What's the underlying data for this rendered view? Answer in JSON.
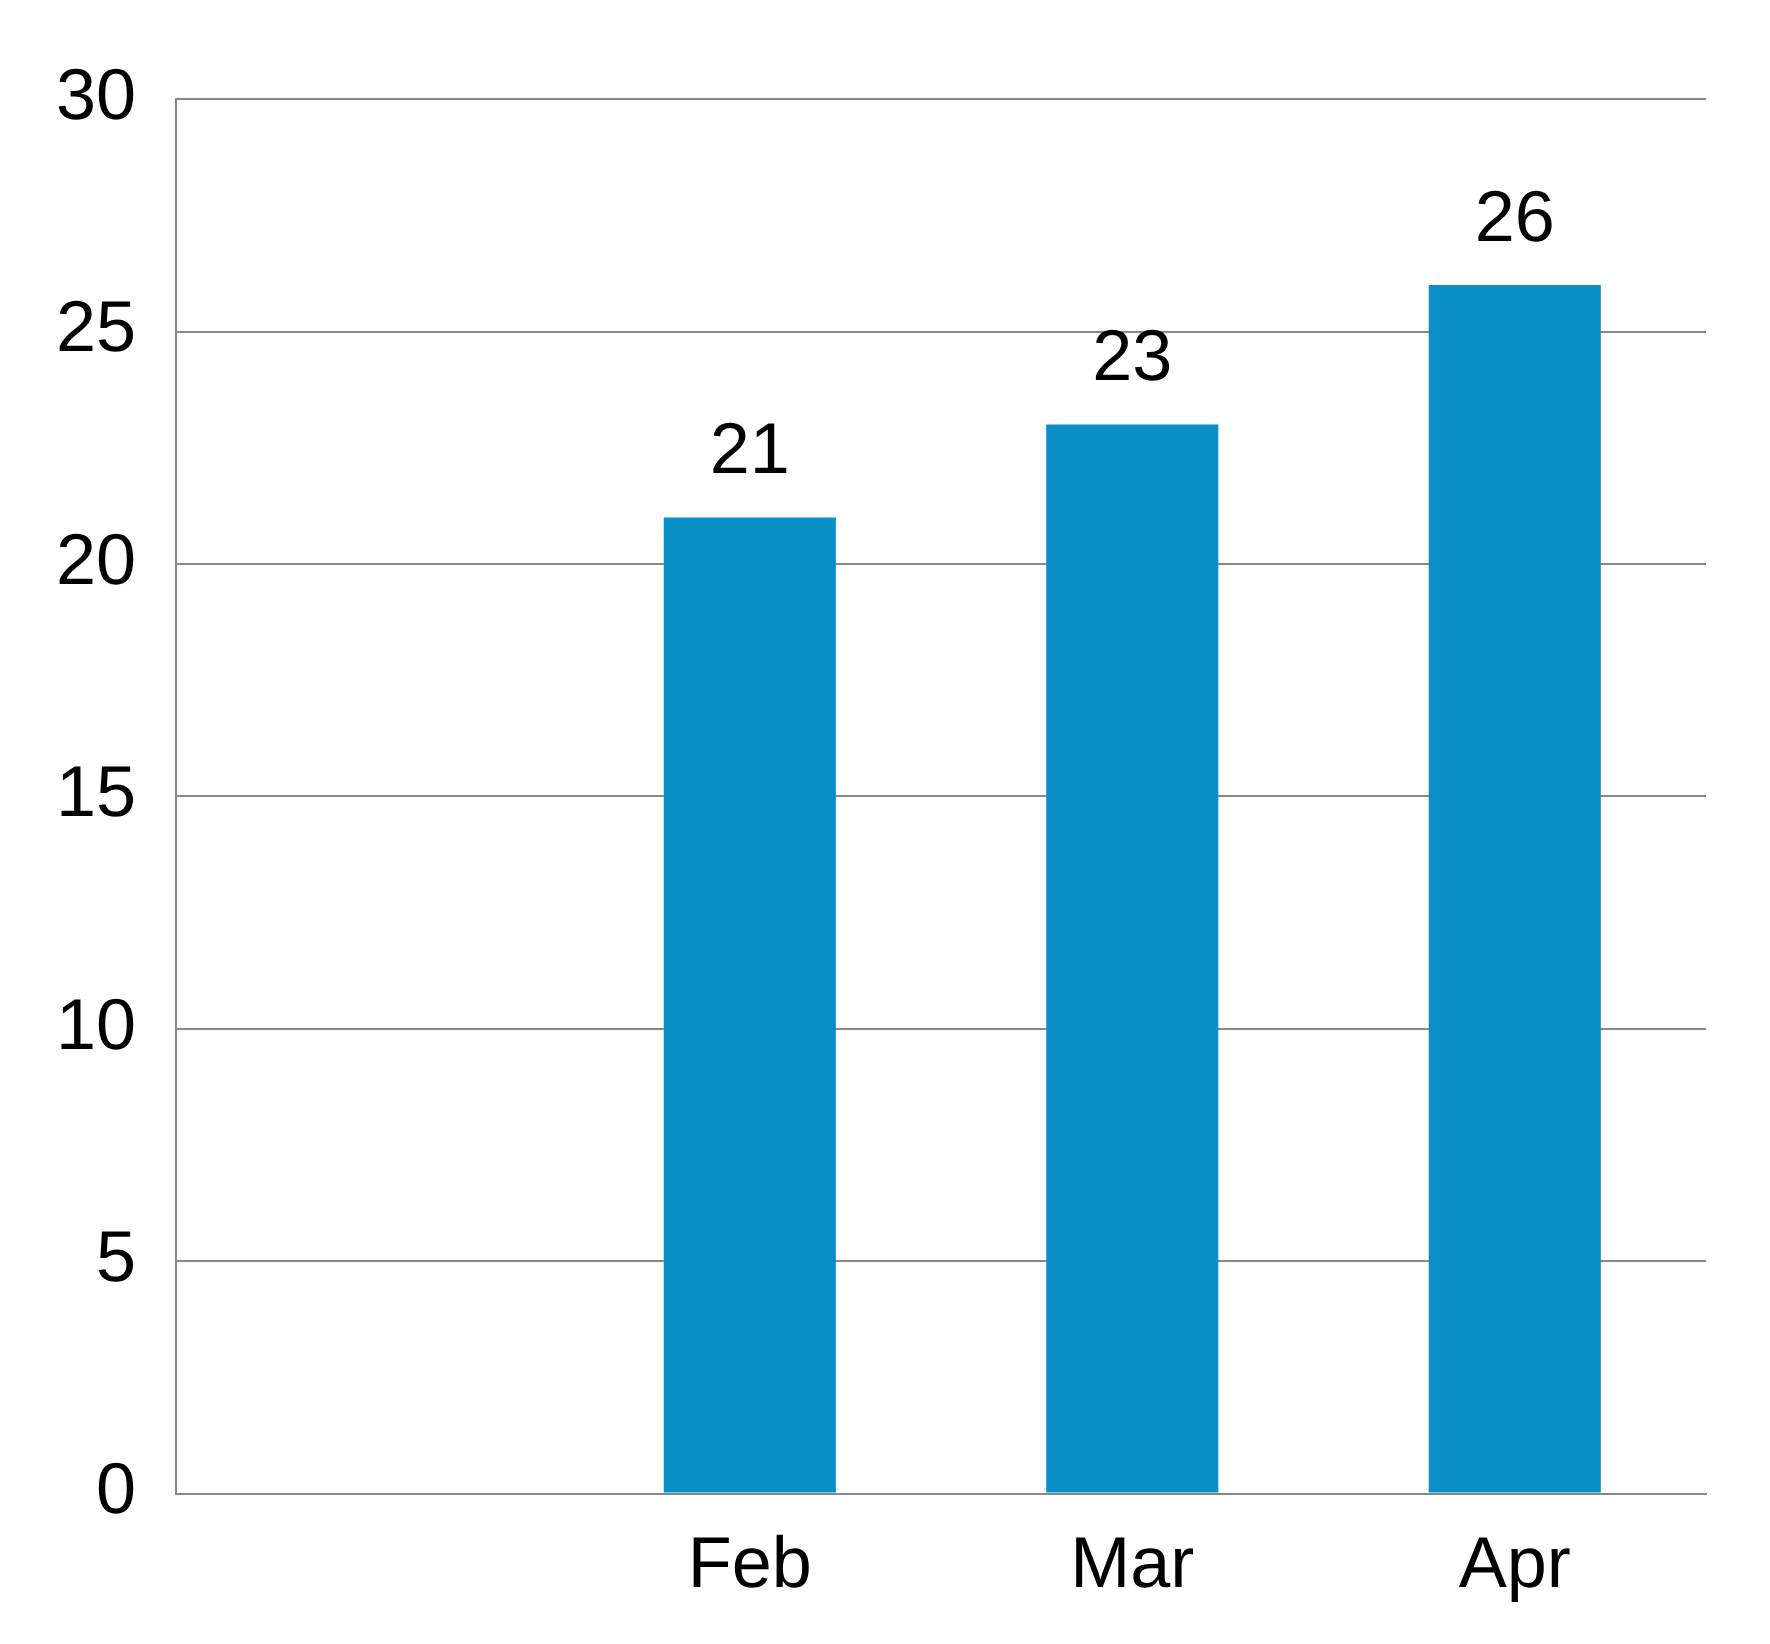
{
  "chart_data": {
    "type": "bar",
    "categories": [
      null,
      "Feb",
      "Mar",
      "Apr"
    ],
    "values": [
      null,
      21,
      23,
      26
    ],
    "color": "#0a8fc8",
    "ylim": [
      0,
      30
    ],
    "yticks": [
      0,
      5,
      10,
      15,
      20,
      25,
      30
    ],
    "grid": "y",
    "data_labels": true,
    "legend": false
  }
}
